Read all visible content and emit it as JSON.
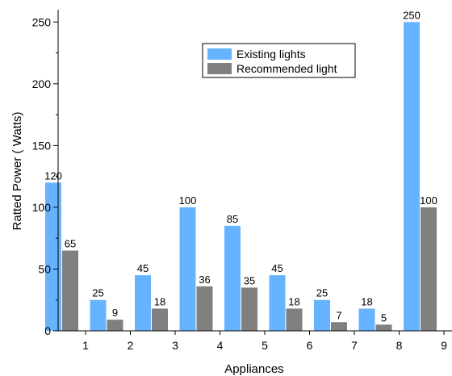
{
  "chart_data": {
    "type": "bar",
    "title": "",
    "xlabel": "Appliances",
    "ylabel": "Ratted Power ( Watts)",
    "categories": [
      "1",
      "2",
      "3",
      "4",
      "5",
      "6",
      "7",
      "8",
      "9"
    ],
    "series": [
      {
        "name": "Existing lights",
        "values": [
          120,
          25,
          45,
          100,
          85,
          45,
          25,
          18,
          250
        ],
        "color": "#66b3ff"
      },
      {
        "name": "Recommended light",
        "values": [
          65,
          9,
          18,
          36,
          35,
          18,
          7,
          5,
          100
        ],
        "color": "#808080"
      }
    ],
    "ylim": [
      0,
      260
    ],
    "yticks": [
      0,
      50,
      100,
      150,
      200,
      250
    ],
    "grid": false,
    "legend_position": "top-center"
  }
}
